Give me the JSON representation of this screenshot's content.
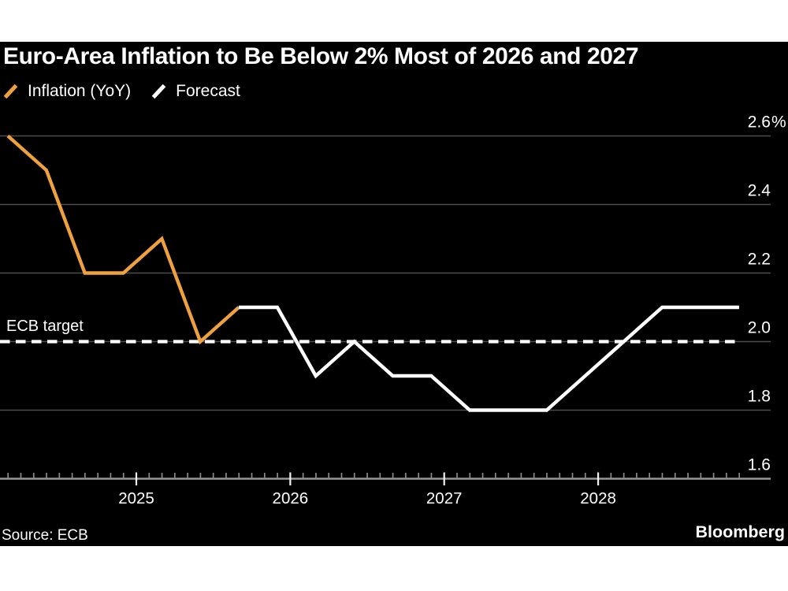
{
  "header": {
    "title": "Euro-Area Inflation to Be Below 2% Most of 2026 and 2027"
  },
  "legend": {
    "items": [
      {
        "label": "Inflation (YoY)",
        "color": "#EFA13E"
      },
      {
        "label": "Forecast",
        "color": "#FFFFFF"
      }
    ]
  },
  "chart_data": {
    "type": "line",
    "title": "Euro-Area Inflation to Be Below 2% Most of 2026 and 2027",
    "unit": "percent, year-over-year",
    "x_categories_quarters": [
      "2024 Q1",
      "2024 Q2",
      "2024 Q3",
      "2024 Q4",
      "2025 Q1",
      "2025 Q2",
      "2025 Q3",
      "2025 Q4",
      "2026 Q1",
      "2026 Q2",
      "2026 Q3",
      "2026 Q4",
      "2027 Q1",
      "2027 Q2",
      "2027 Q3",
      "2027 Q4",
      "2028 Q1",
      "2028 Q2",
      "2028 Q3",
      "2028 Q4"
    ],
    "series": [
      {
        "name": "Inflation (YoY)",
        "color": "#EFA13E",
        "start_index": 0,
        "values": [
          2.6,
          2.5,
          2.2,
          2.2,
          2.3,
          2.0,
          2.1
        ]
      },
      {
        "name": "Forecast",
        "color": "#FFFFFF",
        "start_index": 6,
        "values": [
          2.1,
          2.1,
          1.9,
          2.0,
          1.9,
          1.9,
          1.8,
          1.8,
          1.8,
          1.9,
          2.0,
          2.1,
          2.1,
          2.1
        ]
      }
    ],
    "x_axis": {
      "tick_labels": [
        "2025",
        "2026",
        "2027",
        "2028"
      ],
      "minor_tick_unit": "month"
    },
    "y_axis": {
      "tick_labels": [
        "2.6%",
        "2.4",
        "2.2",
        "2.0",
        "1.8",
        "1.6"
      ],
      "tick_values": [
        2.6,
        2.4,
        2.2,
        2.0,
        1.8,
        1.6
      ],
      "range": [
        1.6,
        2.6
      ],
      "side": "right"
    },
    "target_line": {
      "label": "ECB target",
      "value": 2.0,
      "style": "dashed",
      "color": "#FFFFFF"
    },
    "legend_position": "top-left",
    "grid": "horizontal"
  },
  "footer": {
    "source": "Source: ECB",
    "brand": "Bloomberg"
  }
}
